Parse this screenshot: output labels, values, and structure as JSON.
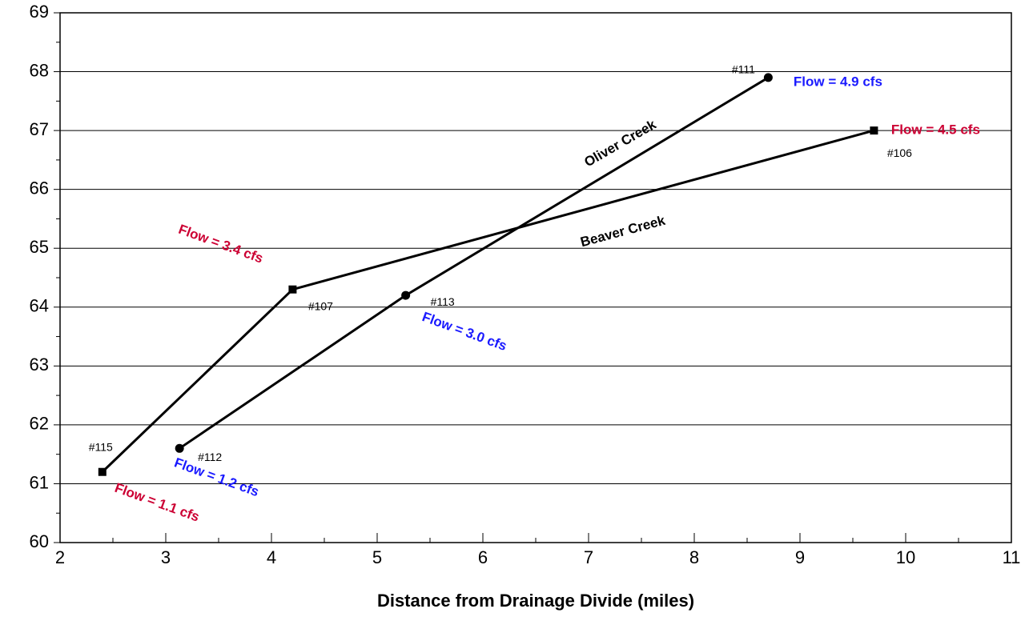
{
  "chart_data": {
    "type": "line",
    "x_label": "Distance from Drainage Divide (miles)",
    "xlim": [
      2,
      11
    ],
    "xticks": [
      2,
      3,
      4,
      5,
      6,
      7,
      8,
      9,
      10,
      11
    ],
    "xminorticks": [
      2.5,
      3.5,
      4.5,
      5.5,
      6.5,
      7.5,
      8.5,
      9.5,
      10.5
    ],
    "ylim": [
      60,
      69
    ],
    "yticks": [
      60,
      61,
      62,
      63,
      64,
      65,
      66,
      67,
      68,
      69
    ],
    "yminorticks": [
      60.5,
      61.5,
      62.5,
      63.5,
      64.5,
      65.5,
      66.5,
      67.5,
      68.5
    ],
    "grid": true,
    "series": [
      {
        "name": "Beaver Creek",
        "color": "#000000",
        "marker": "square",
        "label_color": "#cc0033",
        "x": [
          2.4,
          4.2,
          9.7
        ],
        "values": [
          61.2,
          64.3,
          67.0
        ],
        "point_labels": [
          "#115",
          "#107",
          "#106"
        ],
        "flow_labels": [
          "Flow = 1.1 cfs",
          "Flow = 3.4 cfs",
          "Flow = 4.5 cfs"
        ]
      },
      {
        "name": "Oliver Creek",
        "color": "#000000",
        "marker": "circle",
        "label_color": "#1a1aff",
        "x": [
          3.13,
          5.27,
          8.7
        ],
        "values": [
          61.6,
          64.2,
          67.9
        ],
        "point_labels": [
          "#112",
          "#113",
          "#111"
        ],
        "flow_labels": [
          "Flow = 1.2 cfs",
          "Flow = 3.0 cfs",
          "Flow = 4.9 cfs"
        ]
      }
    ]
  }
}
